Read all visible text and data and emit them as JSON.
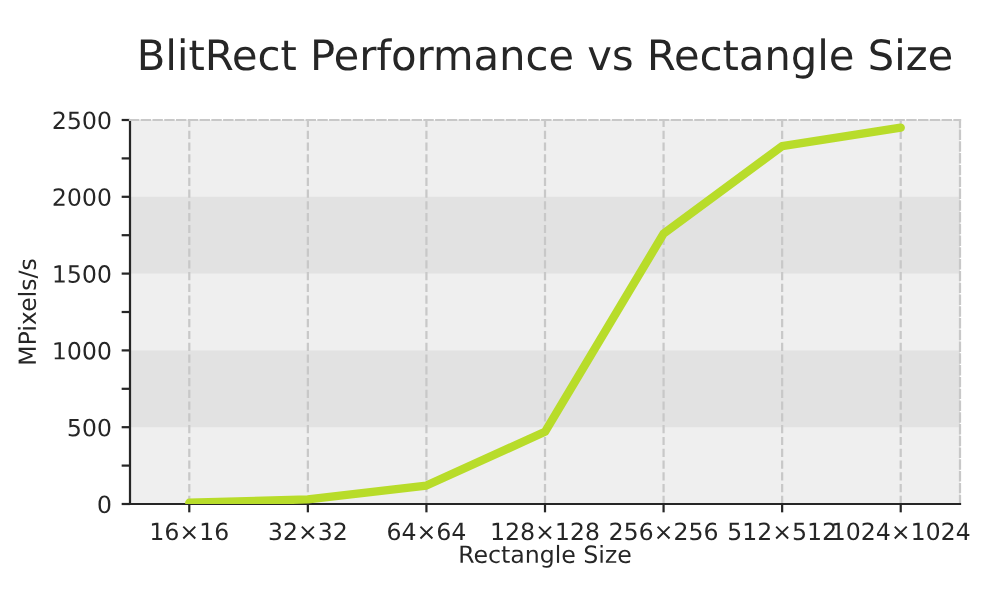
{
  "chart_data": {
    "type": "line",
    "title": "BlitRect Performance vs Rectangle Size",
    "xlabel": "Rectangle Size",
    "ylabel": "MPixels/s",
    "categories": [
      "16×16",
      "32×32",
      "64×64",
      "128×128",
      "256×256",
      "512×512",
      "1024×1024"
    ],
    "series": [
      {
        "color": "#b8dc2a",
        "values": [
          8,
          30,
          120,
          470,
          1760,
          2330,
          2450
        ]
      }
    ],
    "ylim": [
      0,
      2500
    ],
    "yticks": [
      0,
      {
        "value": 250,
        "label": null
      },
      500,
      {
        "value": 750,
        "label": null
      },
      1000,
      {
        "value": 1250,
        "label": null
      },
      1500,
      {
        "value": 1750,
        "label": null
      },
      2000,
      {
        "value": 2250,
        "label": null
      },
      2500
    ],
    "bands": [
      {
        "axis": "y",
        "from": 500,
        "to": 1000,
        "color": "#e2e2e2"
      },
      {
        "axis": "y",
        "from": 1500,
        "to": 2000,
        "color": "#e2e2e2"
      }
    ],
    "grid": "x",
    "marker": "none",
    "line_style": "solid",
    "legend": false
  }
}
